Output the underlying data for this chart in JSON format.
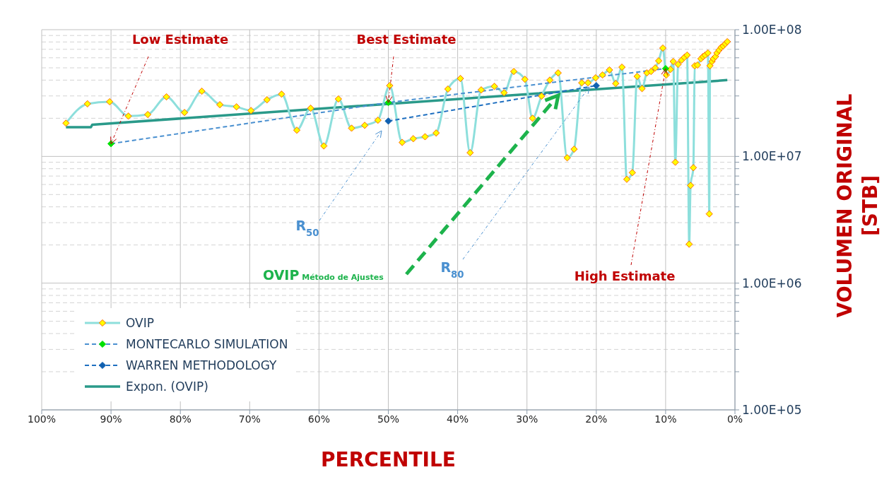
{
  "chart_data": {
    "type": "line",
    "xlabel": "PERCENTILE",
    "ylabel": "VOLUMEN ORIGINAL\n[STB]",
    "log": "y",
    "grid": true,
    "legend": "bottom left",
    "xlim": [
      100,
      0
    ],
    "xticks": [
      {
        "value": 100,
        "label": "100%"
      },
      {
        "value": 90,
        "label": "90%"
      },
      {
        "value": 80,
        "label": "80%"
      },
      {
        "value": 70,
        "label": "70%"
      },
      {
        "value": 60,
        "label": "60%"
      },
      {
        "value": 50,
        "label": "50%"
      },
      {
        "value": 40,
        "label": "40%"
      },
      {
        "value": 30,
        "label": "30%"
      },
      {
        "value": 20,
        "label": "20%"
      },
      {
        "value": 10,
        "label": "10%"
      },
      {
        "value": 0,
        "label": "0%"
      }
    ],
    "ylim": [
      100000,
      100000000
    ],
    "yticks": [
      {
        "value": 100000,
        "label": "1.00E+05"
      },
      {
        "value": 200000,
        "label": null
      },
      {
        "value": 300000,
        "label": null
      },
      {
        "value": 400000,
        "label": null
      },
      {
        "value": 500000,
        "label": null
      },
      {
        "value": 600000,
        "label": null
      },
      {
        "value": 700000,
        "label": null
      },
      {
        "value": 800000,
        "label": null
      },
      {
        "value": 900000,
        "label": null
      },
      {
        "value": 1000000,
        "label": "1.00E+06"
      },
      {
        "value": 2000000,
        "label": null
      },
      {
        "value": 3000000,
        "label": null
      },
      {
        "value": 4000000,
        "label": null
      },
      {
        "value": 5000000,
        "label": null
      },
      {
        "value": 6000000,
        "label": null
      },
      {
        "value": 7000000,
        "label": null
      },
      {
        "value": 8000000,
        "label": null
      },
      {
        "value": 9000000,
        "label": null
      },
      {
        "value": 10000000,
        "label": "1.00E+07"
      },
      {
        "value": 20000000,
        "label": null
      },
      {
        "value": 30000000,
        "label": null
      },
      {
        "value": 40000000,
        "label": null
      },
      {
        "value": 50000000,
        "label": null
      },
      {
        "value": 60000000,
        "label": null
      },
      {
        "value": 70000000,
        "label": null
      },
      {
        "value": 80000000,
        "label": null
      },
      {
        "value": 90000000,
        "label": null
      },
      {
        "value": 100000000,
        "label": "1.00E+08"
      }
    ],
    "series": [
      {
        "name": "OVIP",
        "color": "#8ddfdc",
        "marker": "diamond",
        "colors": [
          "#ffff00",
          "#ffff00",
          "#ffff00",
          "#ffff00",
          "#ffff00",
          "#ffff00",
          "#ffff00",
          "#ffff00",
          "#ffff00",
          "#ffff00",
          "#ffff00",
          "#ffff00",
          "#ffff00",
          "#ffff00",
          "#ffff00",
          "#ffff00",
          "#ffff00",
          "#ffff00",
          "#ffff00",
          "#ffff00",
          "#ffff00",
          "#ffff00",
          "#ffff00",
          "#ffff00",
          "#ffff00",
          "#ffff00",
          "#ffff00",
          "#ffff00",
          "#ffff00",
          "#ffff00",
          "#ffff00",
          "#ffff00",
          "#ffff00",
          "#ffff00",
          "#ffff00",
          "#ffff00",
          "#ffff00",
          "#ffff00",
          "#ffff00",
          "#ffff00",
          "#ffff00",
          "#ffff00",
          "#ffff00",
          "#ffff00",
          "#ffff00",
          "#ffff00",
          "#ffff00",
          "#ffff00",
          "#ffff00",
          "#ffff00",
          "#ffff00",
          "#ffff00",
          "#ffff00",
          "#ffff00",
          "#ffff00",
          "#ffff00",
          "#ffff00",
          "#ffff00",
          "#ffff00",
          "#ffff00",
          "#ffff00",
          "#ffff00",
          "#ffff00",
          "#ffff00",
          "#ffff00",
          "#ffff00",
          "#ffff00",
          "#ffff00",
          "#ffff00",
          "#ffff00",
          "#ffff00",
          "#ffff00",
          "#ffff00",
          "#ffff00",
          "#ffff00",
          "#ffff00",
          "#ffff00",
          "#ffff00",
          "#ffff00",
          "#ffff00",
          "#ffff00",
          "#ffff00",
          "#ffff00"
        ],
        "line_style": "solid",
        "x": [
          96.5,
          93.4,
          90.2,
          87.5,
          84.7,
          82.0,
          79.4,
          76.9,
          74.3,
          71.9,
          69.8,
          67.5,
          65.4,
          63.2,
          61.2,
          59.3,
          57.2,
          55.3,
          53.4,
          51.5,
          49.8,
          48.0,
          46.4,
          44.7,
          43.1,
          41.4,
          39.6,
          38.2,
          36.6,
          34.7,
          33.3,
          31.9,
          30.3,
          29.2,
          27.9,
          26.7,
          25.5,
          24.2,
          23.2,
          22.1,
          21.2,
          20.1,
          19.1,
          18.1,
          17.2,
          16.3,
          15.6,
          14.8,
          14.1,
          13.4,
          12.7,
          12.1,
          11.5,
          11.0,
          10.4,
          9.9,
          9.3,
          8.9,
          8.6,
          8.2,
          7.7,
          7.3,
          6.9,
          6.6,
          6.4,
          6.0,
          5.8,
          5.4,
          4.9,
          4.6,
          4.3,
          3.9,
          3.7,
          3.6,
          3.3,
          3.1,
          2.8,
          2.6,
          2.3,
          2.0,
          1.7,
          1.4,
          1.1
        ],
        "values": [
          18300000,
          26000000,
          27000000,
          20800000,
          21400000,
          29500000,
          22200000,
          32700000,
          25600000,
          24600000,
          23000000,
          28000000,
          31000000,
          16100000,
          24000000,
          12100000,
          28400000,
          16700000,
          17600000,
          19300000,
          36200000,
          12900000,
          13800000,
          14300000,
          15300000,
          34000000,
          41200000,
          10700000,
          33500000,
          35700000,
          31800000,
          46800000,
          40600000,
          20000000,
          29900000,
          40000000,
          45600000,
          9750000,
          11400000,
          38100000,
          38100000,
          41700000,
          43900000,
          48100000,
          37600000,
          50600000,
          6600000,
          7450000,
          42800000,
          34300000,
          45600000,
          46800000,
          49900000,
          56800000,
          71600000,
          43900000,
          48600000,
          56100000,
          9000000,
          53200000,
          57500000,
          60500000,
          63000000,
          2030000,
          5900000,
          8150000,
          51900000,
          52600000,
          59000000,
          61400000,
          63000000,
          65500000,
          3520000,
          51900000,
          56100000,
          59000000,
          61400000,
          65500000,
          68900000,
          72500000,
          74400000,
          77300000,
          80400000
        ]
      },
      {
        "name": "MONTECARLO SIMULATION",
        "color": "#4a90d0",
        "marker": "diamond",
        "colors": [
          "#00e000",
          "#00e000",
          "#00e000"
        ],
        "line_style": "dashed",
        "x": [
          90,
          50,
          10
        ],
        "values": [
          12600000,
          26600000,
          49300000
        ]
      },
      {
        "name": "WARREN METHODOLOGY",
        "color": "#1e6fc0",
        "marker": "diamond",
        "colors": [
          "#1060b0",
          "#1060b0"
        ],
        "line_style": "dashed",
        "x": [
          50,
          20
        ],
        "values": [
          19000000,
          36200000
        ]
      },
      {
        "name": "Expon. (OVIP)",
        "color": "#2a9a8a",
        "marker": "none",
        "line_style": "solid",
        "x": [
          96.5,
          92.9,
          92.7,
          1.1
        ],
        "values": [
          17000000,
          17000000,
          17800000,
          40000000
        ]
      }
    ],
    "annotations": [
      {
        "text": "Low Estimate",
        "x": 90,
        "y": 12600000
      },
      {
        "text": "Best Estimate",
        "x": 50,
        "y": 26600000
      },
      {
        "text": "High Estimate",
        "x": 10,
        "y": 49300000
      },
      "R$_{50}$",
      {
        "text": "R$_{80}$",
        "x": 21,
        "y": 35400000
      },
      "OVIP Método de Ajustes"
    ]
  }
}
